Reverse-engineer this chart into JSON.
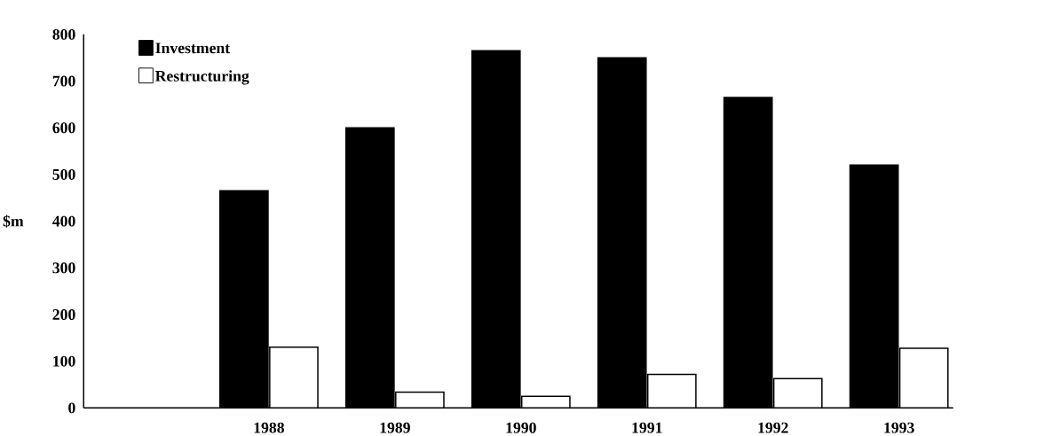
{
  "chart_data": {
    "type": "bar",
    "ylabel": "$m",
    "categories": [
      null,
      "1988",
      "1989",
      "1990",
      "1991",
      "1992",
      "1993"
    ],
    "series": [
      {
        "name": "Investment",
        "color": "#000000",
        "values": [
          null,
          465,
          600,
          765,
          750,
          665,
          520
        ]
      },
      {
        "name": "Restructuring",
        "color": "#ffffff",
        "values": [
          null,
          130,
          34,
          25,
          72,
          63,
          128
        ]
      }
    ],
    "ylim": [
      0,
      800
    ],
    "yticks": [
      0,
      100,
      200,
      300,
      400,
      500,
      600,
      700,
      800
    ],
    "grid": false,
    "legend": "top left"
  }
}
